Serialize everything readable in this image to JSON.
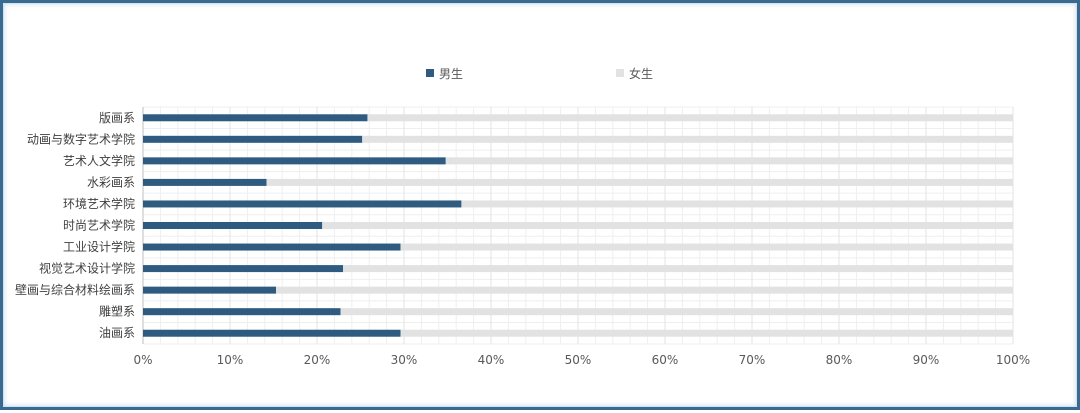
{
  "chart_data": {
    "type": "bar",
    "orientation": "horizontal",
    "stacked": "percent",
    "categories": [
      "版画系",
      "动画与数字艺术学院",
      "艺术人文学院",
      "水彩画系",
      "环境艺术学院",
      "时尚艺术学院",
      "工业设计学院",
      "视觉艺术设计学院",
      "壁画与综合材料绘画系",
      "雕塑系",
      "油画系"
    ],
    "series": [
      {
        "name": "男生",
        "color": "#2e5b7f",
        "values": [
          25.8,
          25.2,
          34.8,
          14.2,
          36.6,
          20.6,
          29.6,
          23.0,
          15.3,
          22.7,
          29.6
        ]
      },
      {
        "name": "女生",
        "color": "#e2e2e2",
        "values": [
          74.2,
          74.8,
          65.2,
          85.8,
          63.4,
          79.4,
          70.4,
          77.0,
          84.7,
          77.3,
          70.4
        ]
      }
    ],
    "xlim": [
      0,
      100
    ],
    "x_ticks": [
      "0%",
      "10%",
      "20%",
      "30%",
      "40%",
      "50%",
      "60%",
      "70%",
      "80%",
      "90%",
      "100%"
    ],
    "legend_position": "top",
    "grid": true
  }
}
